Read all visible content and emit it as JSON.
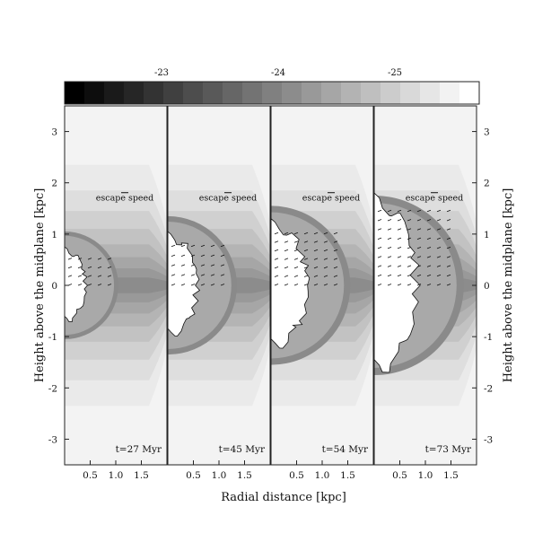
{
  "chart_data": {
    "type": "heatmap",
    "xlabel": "Radial distance [kpc]",
    "ylabel_left": "Height above the midplane [kpc]",
    "ylabel_right": "Height above the midplane [kpc]",
    "colorbar": {
      "ticks": [
        {
          "label": "-23",
          "value": -23
        },
        {
          "label": "-24",
          "value": -24
        },
        {
          "label": "-25",
          "value": -25
        }
      ],
      "levels": 21,
      "dark_color": "#000000",
      "light_color": "#ffffff"
    },
    "x_ticks": [
      0.5,
      1.0,
      1.5
    ],
    "x_tick_labels": [
      "0.5",
      "1.0",
      "1.5"
    ],
    "ylim": [
      -3.5,
      3.5
    ],
    "y_ticks": [
      -3,
      -2,
      -1,
      0,
      1,
      2,
      3
    ],
    "y_tick_labels": [
      "-3",
      "-2",
      "-1",
      "0",
      "1",
      "2",
      "3"
    ],
    "panels": [
      {
        "label": "t=27 Myr",
        "annotation": "escape speed",
        "bubble_height": 0.75,
        "shell_radius": 1.05
      },
      {
        "label": "t=45 Myr",
        "annotation": "escape speed",
        "bubble_height": 1.05,
        "shell_radius": 1.35
      },
      {
        "label": "t=54 Myr",
        "annotation": "escape speed",
        "bubble_height": 1.3,
        "shell_radius": 1.55
      },
      {
        "label": "t=73 Myr",
        "annotation": "escape speed",
        "bubble_height": 1.8,
        "shell_radius": 1.75
      }
    ]
  }
}
